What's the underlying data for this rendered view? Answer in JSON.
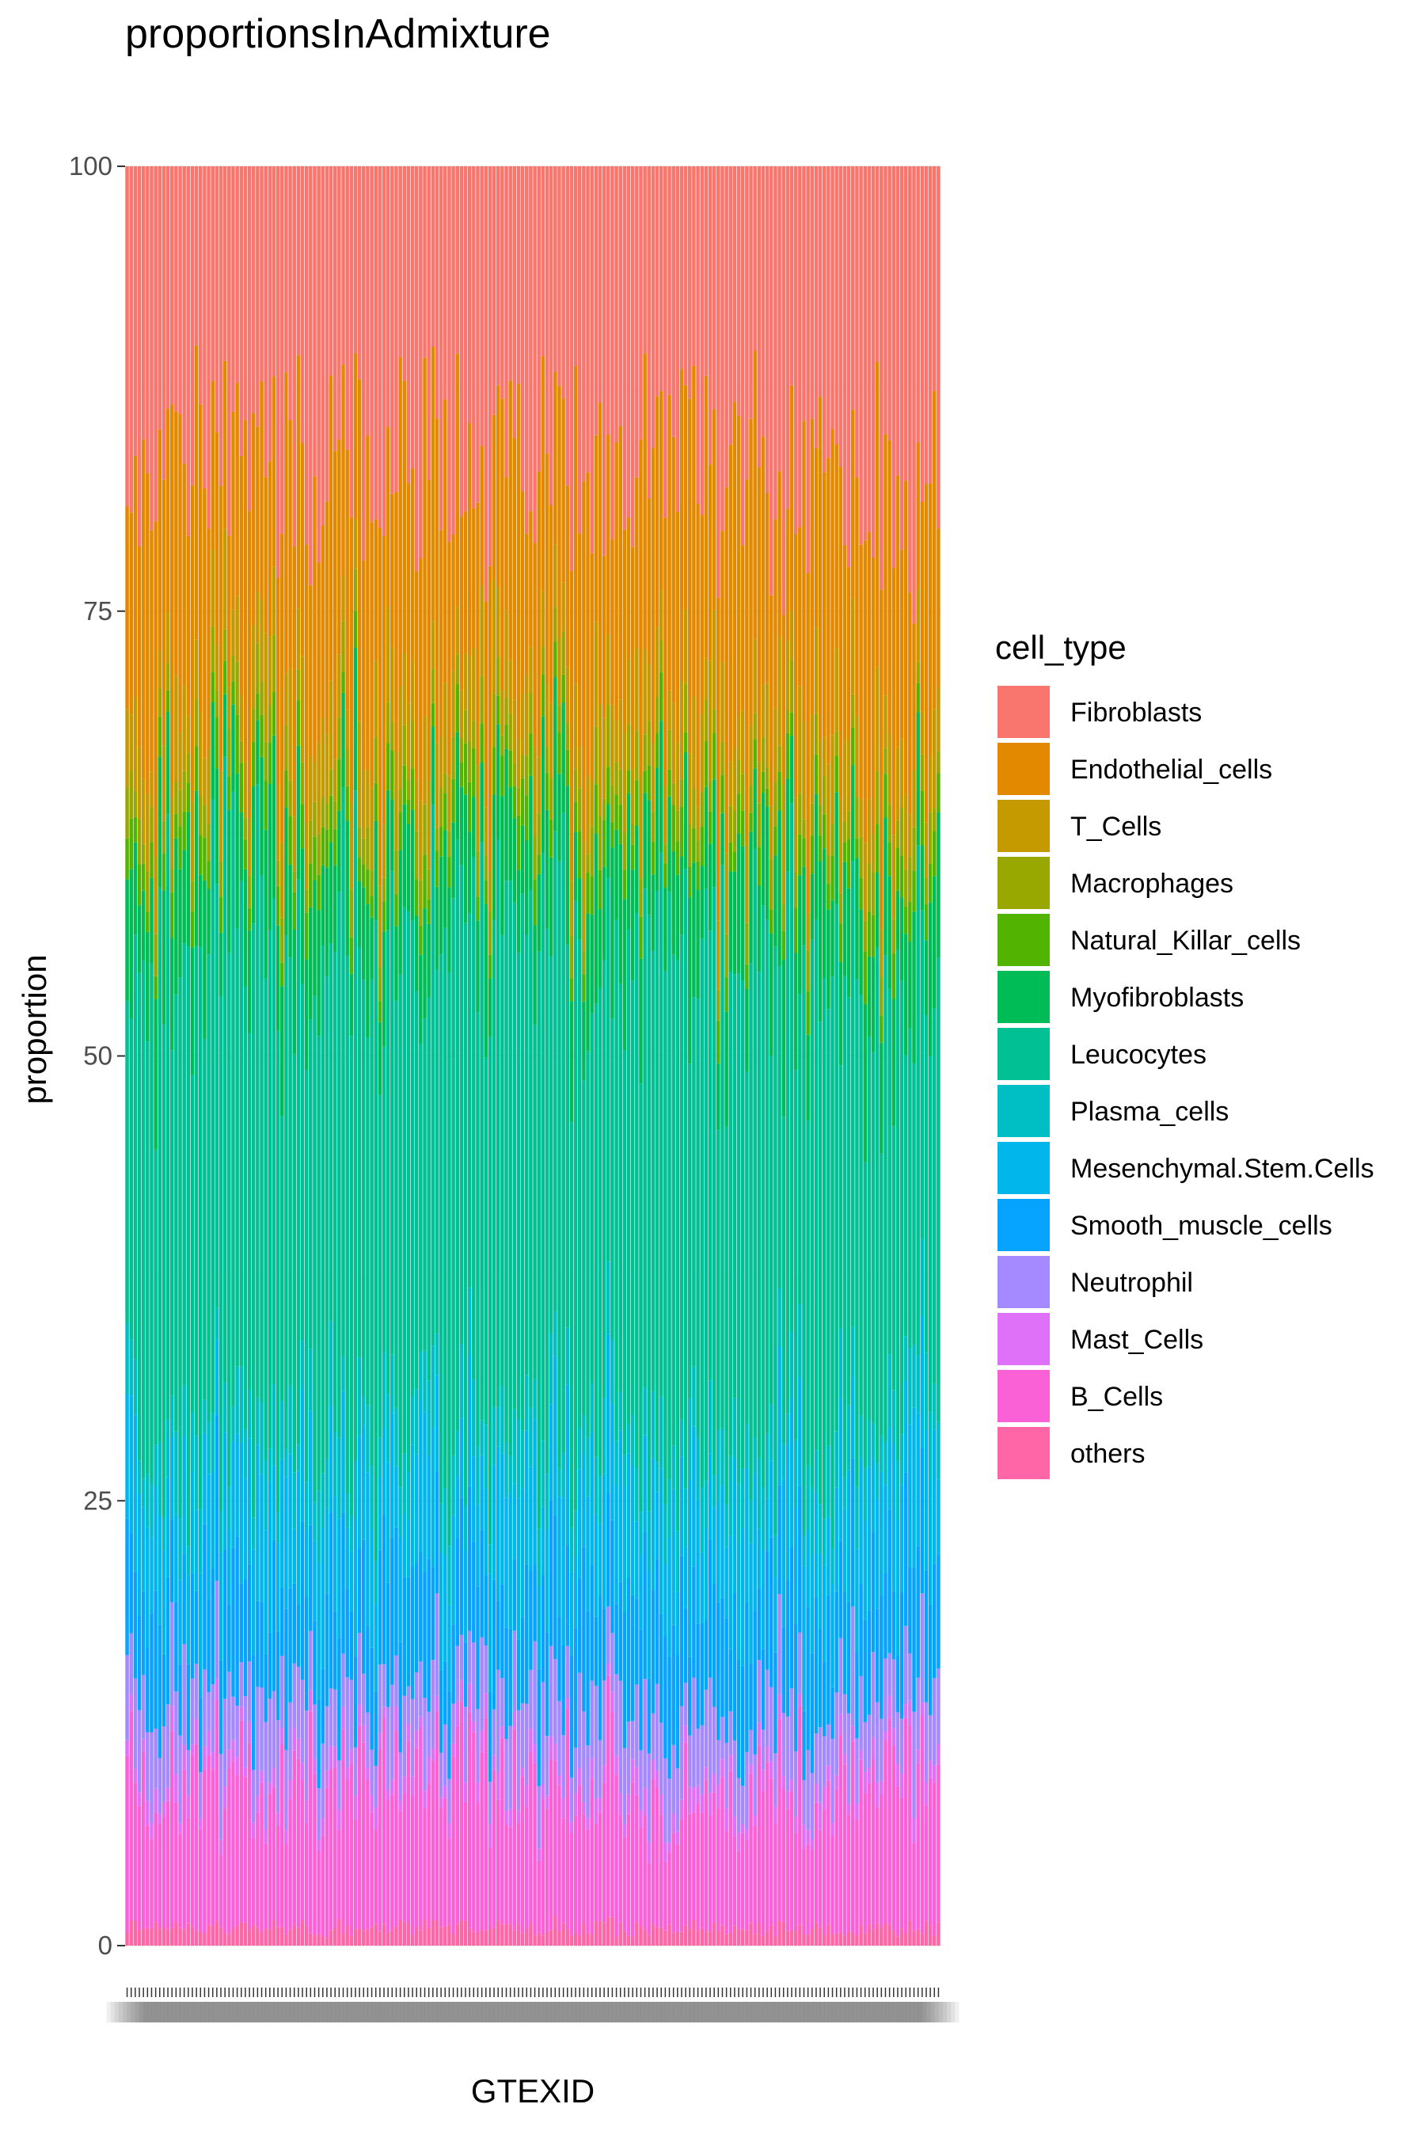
{
  "chart_data": {
    "type": "bar",
    "stacked": true,
    "title": "proportionsInAdmixture",
    "xlabel": "GTEXID",
    "ylabel": "proportion",
    "ylim": [
      0,
      100
    ],
    "yticks": [
      0,
      25,
      50,
      75,
      100
    ],
    "grid": true,
    "legend_title": "cell_type",
    "legend_position": "right",
    "n_samples": 200,
    "x_tick_labels_note": "overlapping, illegible sample IDs",
    "series": [
      {
        "name": "Fibroblasts",
        "color": "#F8766D",
        "mean": 17
      },
      {
        "name": "Endothelial_cells",
        "color": "#E38900",
        "mean": 14
      },
      {
        "name": "T_Cells",
        "color": "#C49A00",
        "mean": 4
      },
      {
        "name": "Macrophages",
        "color": "#99A800",
        "mean": 2
      },
      {
        "name": "Natural_Killar_cells",
        "color": "#53B400",
        "mean": 2
      },
      {
        "name": "Myofibroblasts",
        "color": "#00BC56",
        "mean": 6
      },
      {
        "name": "Leucocytes",
        "color": "#00C094",
        "mean": 26
      },
      {
        "name": "Plasma_cells",
        "color": "#00BFC4",
        "mean": 3
      },
      {
        "name": "Mesenchymal.Stem.Cells",
        "color": "#00B6EB",
        "mean": 6
      },
      {
        "name": "Smooth_muscle_cells",
        "color": "#06A4FF",
        "mean": 6
      },
      {
        "name": "Neutrophil",
        "color": "#A58AFF",
        "mean": 4
      },
      {
        "name": "Mast_Cells",
        "color": "#DF70F8",
        "mean": 1
      },
      {
        "name": "B_Cells",
        "color": "#FB61D7",
        "mean": 8
      },
      {
        "name": "others",
        "color": "#FF66A8",
        "mean": 1
      }
    ]
  }
}
